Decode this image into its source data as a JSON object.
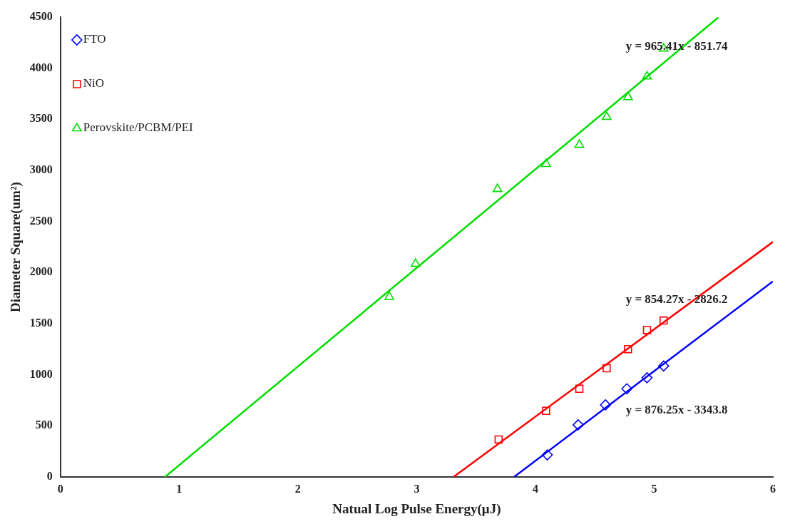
{
  "chart_data": {
    "type": "scatter",
    "xlabel": "Natual Log Pulse Energy(μJ)",
    "ylabel": "Diameter Square(um²)",
    "xlim": [
      0,
      6
    ],
    "xticks": [
      0,
      1,
      2,
      3,
      4,
      5,
      6
    ],
    "ylim": [
      0,
      4500
    ],
    "yticks": [
      0,
      500,
      1000,
      1500,
      2000,
      2500,
      3000,
      3500,
      4000,
      4500
    ],
    "grid": false,
    "legend": "top left",
    "series": [
      {
        "name": "FTO",
        "color": "#0000ff",
        "marker": "diamond",
        "x": [
          4.1,
          4.36,
          4.59,
          4.77,
          4.94,
          5.08
        ],
        "values": [
          216,
          510,
          705,
          863,
          971,
          1086
        ]
      },
      {
        "name": "NiO",
        "color": "#ff0000",
        "marker": "square",
        "x": [
          3.69,
          4.09,
          4.37,
          4.6,
          4.78,
          4.94,
          5.08
        ],
        "values": [
          367,
          647,
          863,
          1064,
          1251,
          1438,
          1531
        ]
      },
      {
        "name": "Perovskite/PCBM/PEI",
        "color": "#00dd00",
        "marker": "triangle",
        "x": [
          2.77,
          2.99,
          3.68,
          4.09,
          4.37,
          4.6,
          4.78,
          4.94,
          5.08
        ],
        "values": [
          1762,
          2085,
          2818,
          3063,
          3250,
          3523,
          3717,
          3919,
          4192
        ]
      },
      {
        "type": "line",
        "color": "#0000ff",
        "marker": "none",
        "x": [
          3.82,
          6
        ],
        "values": [
          0,
          1914
        ]
      },
      {
        "type": "line",
        "color": "#ff0000",
        "marker": "none",
        "x": [
          3.31,
          6
        ],
        "values": [
          0,
          2300
        ]
      },
      {
        "type": "line",
        "color": "#00dd00",
        "marker": "none",
        "x": [
          0.88,
          5.54
        ],
        "values": [
          0,
          4497
        ]
      }
    ],
    "annotations": [
      "y = 965.41x - 851.74",
      "y = 854.27x - 2826.2",
      "y = 876.25x - 3343.8"
    ]
  }
}
